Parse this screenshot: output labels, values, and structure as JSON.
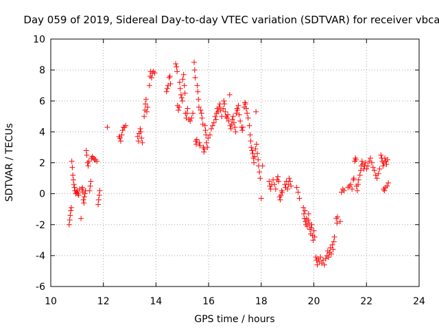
{
  "chart_data": {
    "type": "scatter",
    "title": "Day 059 of 2019, Sidereal Day-to-day VTEC variation (SDTVAR) for receiver vbca",
    "xlabel": "GPS time / hours",
    "ylabel": "SDTVAR / TECUs",
    "xlim": [
      10,
      24
    ],
    "ylim": [
      -6,
      10
    ],
    "xticks": [
      10,
      12,
      14,
      16,
      18,
      20,
      22,
      24
    ],
    "yticks": [
      -6,
      -4,
      -2,
      0,
      2,
      4,
      6,
      8,
      10
    ],
    "grid": true,
    "marker": "plus",
    "series": [
      {
        "name": "SDTVAR",
        "color": "#ff0000",
        "points": [
          [
            10.7,
            -2.0
          ],
          [
            10.72,
            -1.7
          ],
          [
            10.74,
            -1.4
          ],
          [
            10.76,
            -1.1
          ],
          [
            10.78,
            -0.9
          ],
          [
            10.8,
            2.1
          ],
          [
            10.82,
            1.7
          ],
          [
            10.84,
            1.2
          ],
          [
            10.86,
            0.9
          ],
          [
            10.88,
            0.6
          ],
          [
            10.9,
            0.4
          ],
          [
            10.92,
            0.2
          ],
          [
            10.95,
            0.0
          ],
          [
            10.98,
            0.1
          ],
          [
            11.0,
            0.2
          ],
          [
            11.03,
            0.0
          ],
          [
            11.06,
            -0.1
          ],
          [
            11.1,
            0.3
          ],
          [
            11.15,
            -1.6
          ],
          [
            11.18,
            0.3
          ],
          [
            11.2,
            0.4
          ],
          [
            11.22,
            0.1
          ],
          [
            11.24,
            -0.4
          ],
          [
            11.26,
            -0.6
          ],
          [
            11.28,
            -0.2
          ],
          [
            11.3,
            0.0
          ],
          [
            11.32,
            0.2
          ],
          [
            11.35,
            2.8
          ],
          [
            11.37,
            2.5
          ],
          [
            11.4,
            2.0
          ],
          [
            11.42,
            1.8
          ],
          [
            11.45,
            2.1
          ],
          [
            11.48,
            0.2
          ],
          [
            11.5,
            0.5
          ],
          [
            11.52,
            0.8
          ],
          [
            11.55,
            2.3
          ],
          [
            11.58,
            2.4
          ],
          [
            11.62,
            2.3
          ],
          [
            11.66,
            2.2
          ],
          [
            11.7,
            2.2
          ],
          [
            11.75,
            2.1
          ],
          [
            11.8,
            -0.7
          ],
          [
            11.82,
            -0.4
          ],
          [
            11.84,
            -0.1
          ],
          [
            11.86,
            0.2
          ],
          [
            12.15,
            4.3
          ],
          [
            12.6,
            3.7
          ],
          [
            12.63,
            3.6
          ],
          [
            12.66,
            3.4
          ],
          [
            12.7,
            3.8
          ],
          [
            12.73,
            4.1
          ],
          [
            12.76,
            4.3
          ],
          [
            12.8,
            4.3
          ],
          [
            12.85,
            4.4
          ],
          [
            13.3,
            3.7
          ],
          [
            13.33,
            3.4
          ],
          [
            13.36,
            3.9
          ],
          [
            13.4,
            4.2
          ],
          [
            13.42,
            4.0
          ],
          [
            13.45,
            3.6
          ],
          [
            13.48,
            3.3
          ],
          [
            13.55,
            5.0
          ],
          [
            13.58,
            5.4
          ],
          [
            13.6,
            5.8
          ],
          [
            13.62,
            6.1
          ],
          [
            13.65,
            5.3
          ],
          [
            13.68,
            5.6
          ],
          [
            13.75,
            7.0
          ],
          [
            13.78,
            7.6
          ],
          [
            13.8,
            7.9
          ],
          [
            13.83,
            7.5
          ],
          [
            13.86,
            7.8
          ],
          [
            13.9,
            7.9
          ],
          [
            13.95,
            7.8
          ],
          [
            14.4,
            6.6
          ],
          [
            14.43,
            6.8
          ],
          [
            14.46,
            7.0
          ],
          [
            14.5,
            7.5
          ],
          [
            14.53,
            7.6
          ],
          [
            14.55,
            7.1
          ],
          [
            14.75,
            8.4
          ],
          [
            14.78,
            8.2
          ],
          [
            14.8,
            7.9
          ],
          [
            14.82,
            5.7
          ],
          [
            14.85,
            5.4
          ],
          [
            14.88,
            5.6
          ],
          [
            14.9,
            7.2
          ],
          [
            14.92,
            6.8
          ],
          [
            14.95,
            6.4
          ],
          [
            14.98,
            6.2
          ],
          [
            15.0,
            6.0
          ],
          [
            15.02,
            7.4
          ],
          [
            15.05,
            7.7
          ],
          [
            15.08,
            7.0
          ],
          [
            15.1,
            6.5
          ],
          [
            15.12,
            5.2
          ],
          [
            15.15,
            4.9
          ],
          [
            15.18,
            5.2
          ],
          [
            15.2,
            5.5
          ],
          [
            15.25,
            4.8
          ],
          [
            15.3,
            4.7
          ],
          [
            15.35,
            4.9
          ],
          [
            15.4,
            5.2
          ],
          [
            15.45,
            8.5
          ],
          [
            15.47,
            8.0
          ],
          [
            15.49,
            7.5
          ],
          [
            15.51,
            3.4
          ],
          [
            15.53,
            3.2
          ],
          [
            15.55,
            3.5
          ],
          [
            15.57,
            7.0
          ],
          [
            15.59,
            6.6
          ],
          [
            15.61,
            6.1
          ],
          [
            15.63,
            5.6
          ],
          [
            15.65,
            3.3
          ],
          [
            15.67,
            3.1
          ],
          [
            15.7,
            5.4
          ],
          [
            15.73,
            5.2
          ],
          [
            15.75,
            4.9
          ],
          [
            15.78,
            4.5
          ],
          [
            15.8,
            3.0
          ],
          [
            15.82,
            2.7
          ],
          [
            15.84,
            2.9
          ],
          [
            15.86,
            4.4
          ],
          [
            15.88,
            4.1
          ],
          [
            15.9,
            3.8
          ],
          [
            15.92,
            3.3
          ],
          [
            15.95,
            3.0
          ],
          [
            15.98,
            3.6
          ],
          [
            16.05,
            3.8
          ],
          [
            16.1,
            4.2
          ],
          [
            16.15,
            4.4
          ],
          [
            16.2,
            4.6
          ],
          [
            16.25,
            5.0
          ],
          [
            16.28,
            4.8
          ],
          [
            16.3,
            5.2
          ],
          [
            16.33,
            5.5
          ],
          [
            16.36,
            5.3
          ],
          [
            16.4,
            5.6
          ],
          [
            16.43,
            5.8
          ],
          [
            16.46,
            5.4
          ],
          [
            16.5,
            5.0
          ],
          [
            16.55,
            5.5
          ],
          [
            16.58,
            6.0
          ],
          [
            16.6,
            5.8
          ],
          [
            16.63,
            5.3
          ],
          [
            16.66,
            5.0
          ],
          [
            16.7,
            4.9
          ],
          [
            16.73,
            5.1
          ],
          [
            16.76,
            4.7
          ],
          [
            16.8,
            6.4
          ],
          [
            16.82,
            4.4
          ],
          [
            16.85,
            4.2
          ],
          [
            16.88,
            4.5
          ],
          [
            16.9,
            4.8
          ],
          [
            16.93,
            5.0
          ],
          [
            16.96,
            4.6
          ],
          [
            17.0,
            4.3
          ],
          [
            17.03,
            4.0
          ],
          [
            17.05,
            5.2
          ],
          [
            17.08,
            5.5
          ],
          [
            17.1,
            5.4
          ],
          [
            17.13,
            5.7
          ],
          [
            17.16,
            5.1
          ],
          [
            17.2,
            4.7
          ],
          [
            17.25,
            4.3
          ],
          [
            17.28,
            4.1
          ],
          [
            17.3,
            4.3
          ],
          [
            17.35,
            5.6
          ],
          [
            17.38,
            5.9
          ],
          [
            17.4,
            5.8
          ],
          [
            17.43,
            5.5
          ],
          [
            17.46,
            5.2
          ],
          [
            17.5,
            4.9
          ],
          [
            17.55,
            4.4
          ],
          [
            17.58,
            3.8
          ],
          [
            17.6,
            3.4
          ],
          [
            17.62,
            3.0
          ],
          [
            17.65,
            2.8
          ],
          [
            17.68,
            2.6
          ],
          [
            17.7,
            2.3
          ],
          [
            17.72,
            2.0
          ],
          [
            17.75,
            2.4
          ],
          [
            17.78,
            2.9
          ],
          [
            17.8,
            5.3
          ],
          [
            17.82,
            3.2
          ],
          [
            17.85,
            2.6
          ],
          [
            17.88,
            2.2
          ],
          [
            17.9,
            1.8
          ],
          [
            17.93,
            1.4
          ],
          [
            17.96,
            1.0
          ],
          [
            18.0,
            -0.3
          ],
          [
            18.05,
            1.8
          ],
          [
            18.3,
            0.8
          ],
          [
            18.33,
            0.5
          ],
          [
            18.36,
            0.3
          ],
          [
            18.4,
            0.6
          ],
          [
            18.45,
            0.9
          ],
          [
            18.5,
            0.6
          ],
          [
            18.55,
            0.3
          ],
          [
            18.6,
            0.9
          ],
          [
            18.63,
            1.1
          ],
          [
            18.66,
            0.8
          ],
          [
            18.7,
            -0.2
          ],
          [
            18.72,
            -0.4
          ],
          [
            18.75,
            -0.1
          ],
          [
            18.78,
            0.2
          ],
          [
            18.8,
            0.1
          ],
          [
            18.9,
            0.6
          ],
          [
            18.93,
            0.4
          ],
          [
            18.96,
            0.8
          ],
          [
            19.0,
            0.3
          ],
          [
            19.03,
            0.6
          ],
          [
            19.06,
            1.0
          ],
          [
            19.1,
            0.8
          ],
          [
            19.13,
            0.5
          ],
          [
            19.35,
            0.4
          ],
          [
            19.4,
            0.1
          ],
          [
            19.45,
            -0.3
          ],
          [
            19.6,
            -0.9
          ],
          [
            19.62,
            -1.3
          ],
          [
            19.64,
            -1.6
          ],
          [
            19.66,
            -1.1
          ],
          [
            19.68,
            -1.8
          ],
          [
            19.7,
            -2.0
          ],
          [
            19.72,
            -1.6
          ],
          [
            19.75,
            -2.1
          ],
          [
            19.78,
            -1.7
          ],
          [
            19.8,
            -1.3
          ],
          [
            19.82,
            -1.9
          ],
          [
            19.85,
            -2.3
          ],
          [
            19.88,
            -2.6
          ],
          [
            19.9,
            -2.2
          ],
          [
            19.92,
            -2.0
          ],
          [
            19.95,
            -2.7
          ],
          [
            19.97,
            -3.0
          ],
          [
            20.0,
            -2.4
          ],
          [
            20.03,
            -2.8
          ],
          [
            20.08,
            -4.1
          ],
          [
            20.1,
            -4.3
          ],
          [
            20.13,
            -4.6
          ],
          [
            20.16,
            -4.2
          ],
          [
            20.2,
            -4.4
          ],
          [
            20.25,
            -4.1
          ],
          [
            20.3,
            -4.5
          ],
          [
            20.35,
            -4.3
          ],
          [
            20.4,
            -4.6
          ],
          [
            20.45,
            -4.2
          ],
          [
            20.5,
            -4.0
          ],
          [
            20.53,
            -3.7
          ],
          [
            20.56,
            -4.1
          ],
          [
            20.6,
            -3.8
          ],
          [
            20.63,
            -3.5
          ],
          [
            20.66,
            -3.9
          ],
          [
            20.7,
            -3.3
          ],
          [
            20.73,
            -3.6
          ],
          [
            20.76,
            -3.1
          ],
          [
            20.78,
            -2.8
          ],
          [
            20.85,
            -1.6
          ],
          [
            20.88,
            -1.9
          ],
          [
            20.9,
            -1.5
          ],
          [
            21.0,
            -1.8
          ],
          [
            21.05,
            0.1
          ],
          [
            21.1,
            0.3
          ],
          [
            21.15,
            0.2
          ],
          [
            21.3,
            0.4
          ],
          [
            21.35,
            0.5
          ],
          [
            21.4,
            0.6
          ],
          [
            21.45,
            0.3
          ],
          [
            21.5,
            0.9
          ],
          [
            21.52,
            1.0
          ],
          [
            21.55,
            2.1
          ],
          [
            21.58,
            2.3
          ],
          [
            21.6,
            2.2
          ],
          [
            21.62,
            0.5
          ],
          [
            21.65,
            0.2
          ],
          [
            21.68,
            0.6
          ],
          [
            21.7,
            0.9
          ],
          [
            21.75,
            1.2
          ],
          [
            21.78,
            1.5
          ],
          [
            21.8,
            1.8
          ],
          [
            21.83,
            2.1
          ],
          [
            21.86,
            1.9
          ],
          [
            21.9,
            1.6
          ],
          [
            21.93,
            1.8
          ],
          [
            21.96,
            2.0
          ],
          [
            22.0,
            1.6
          ],
          [
            22.05,
            1.8
          ],
          [
            22.1,
            2.1
          ],
          [
            22.15,
            2.3
          ],
          [
            22.2,
            2.0
          ],
          [
            22.25,
            1.7
          ],
          [
            22.3,
            1.5
          ],
          [
            22.35,
            1.2
          ],
          [
            22.4,
            1.0
          ],
          [
            22.45,
            1.3
          ],
          [
            22.5,
            1.6
          ],
          [
            22.55,
            2.5
          ],
          [
            22.58,
            2.3
          ],
          [
            22.6,
            2.1
          ],
          [
            22.63,
            1.8
          ],
          [
            22.66,
            2.0
          ],
          [
            22.7,
            2.3
          ],
          [
            22.73,
            2.1
          ],
          [
            22.76,
            1.9
          ],
          [
            22.8,
            2.2
          ],
          [
            22.65,
            0.3
          ],
          [
            22.68,
            0.2
          ],
          [
            22.72,
            0.4
          ],
          [
            22.78,
            0.5
          ],
          [
            22.83,
            0.7
          ]
        ]
      }
    ]
  }
}
